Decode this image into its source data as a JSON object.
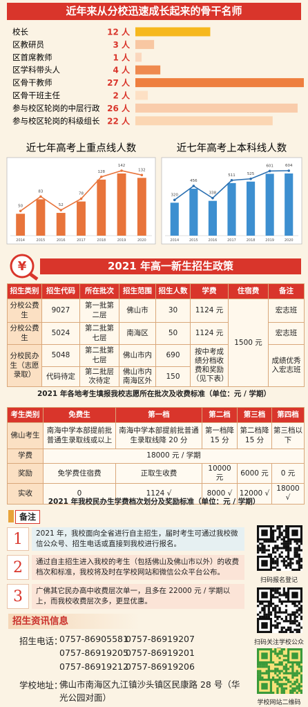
{
  "header": {
    "title": "近年来从分校迅速成长起来的骨干名师"
  },
  "chart_data": [
    {
      "type": "hbar",
      "categories": [
        "校长",
        "区教研员",
        "区首席教师",
        "区学科带头人",
        "区骨干教师",
        "区骨干班主任",
        "参与校区轮岗的中层行政",
        "参与校区轮岗的科级组长"
      ],
      "values": [
        12,
        3,
        1,
        4,
        27,
        2,
        26,
        22
      ],
      "value_labels": [
        "12 人",
        "3 人",
        "1 人",
        "4 人",
        "27 人",
        "2 人",
        "26 人",
        "22 人"
      ],
      "colors": [
        "#f6b81e",
        "#f8c7a2",
        "#fbd7bd",
        "#ef8a4f",
        "#ee7f3f",
        "#fde0c4",
        "#f9ccab",
        "#fbd6b3"
      ]
    },
    {
      "type": "bar",
      "title": "近七年高考上重点线人数",
      "categories": [
        "2014",
        "2015",
        "2016",
        "2017",
        "2018",
        "2019",
        "2020"
      ],
      "values": [
        50,
        83,
        52,
        78,
        128,
        142,
        132
      ],
      "color": "#e8743b",
      "line_color": "#e8743b"
    },
    {
      "type": "bar",
      "title": "近七年高考上本科线人数",
      "categories": [
        "2014",
        "2015",
        "2016",
        "2017",
        "2018",
        "2019",
        "2020"
      ],
      "values": [
        320,
        456,
        338,
        511,
        525,
        601,
        604
      ],
      "color": "#3d8fd0",
      "line_color": "#2a6fb0"
    }
  ],
  "policy": {
    "title": "2021 年高一新生招生政策",
    "table1": {
      "header": [
        "招生类别",
        "招生代码",
        "所在批次",
        "招生范围",
        "招生人数",
        "学费",
        "住宿费",
        "备注"
      ],
      "rows": [
        [
          "分校公费生",
          "9027",
          "第一批第二层",
          "佛山市",
          "30",
          "1124 元",
          "1500 元",
          "宏志班"
        ],
        [
          "分校公费生",
          "5024",
          "第二批第七层",
          "南海区",
          "50",
          "1124 元",
          "宏志班"
        ],
        [
          "分校民办生（志愿录取）",
          "5048",
          "第二批第七层",
          "佛山市内",
          "690",
          "按中考成绩分档收费和奖励（见下表）",
          "成绩优秀入宏志班"
        ],
        [
          "代码待定",
          "第二批层次待定",
          "佛山市内南海区外",
          "150"
        ]
      ],
      "caption": "2021 年各地考生填报我校志愿所在批次及收费标准（单位：元 / 学期）"
    },
    "table2": {
      "header": [
        "考生类别",
        "免费生",
        "第一档",
        "第二档",
        "第三档",
        "第四档"
      ],
      "rows": [
        [
          "佛山考生",
          "南海中学本部提前批普通生录取线或以上",
          "南海中学本部提前批普通生录取线降 20 分",
          "第一档降 15 分",
          "第二档降 15 分",
          "第三档以下"
        ],
        [
          "学费",
          "18000 元 / 学期"
        ],
        [
          "奖励",
          "免学费住宿费",
          "正取生收费",
          "10000 元",
          "6000 元",
          "0 元"
        ],
        [
          "实收",
          "0",
          "1124 √",
          "8000 √",
          "12000 √",
          "18000 √"
        ]
      ],
      "caption": "2021 年我校民办生学费档次划分及奖励标准（单位：元 / 学期）"
    }
  },
  "notes": {
    "label": "备注",
    "items": [
      {
        "num": "1",
        "text": "2021 年，我校面向全省进行自主招生，届时考生可通过我校微信公众号、招生电话或直接到我校进行报名。"
      },
      {
        "num": "2",
        "text": "通过自主招生进入我校的考生（包括佛山及佛山市以外）的收费档次和标准，我校将及时在学校网站和微信公众平台公布。"
      },
      {
        "num": "3",
        "text": "广佛其它民办高中收费层次单一，且多在 22000 元 / 学期以上，而我校收费层次多，更显优惠。"
      }
    ]
  },
  "qr": [
    "扫码报名登记",
    "扫码关注学校公众号",
    "学校网站二维码"
  ],
  "contact": {
    "title": "招生资讯信息",
    "phone_label": "招生电话：",
    "phones": [
      "0757-86905581",
      "0757-86919207",
      "0757-86919205",
      "0757-86919201",
      "0757-86919212",
      "0757-86919206"
    ],
    "address_label": "学校地址：",
    "address": "佛山市南海区九江镇沙头镇区民康路 28 号（华光公园对面）"
  }
}
